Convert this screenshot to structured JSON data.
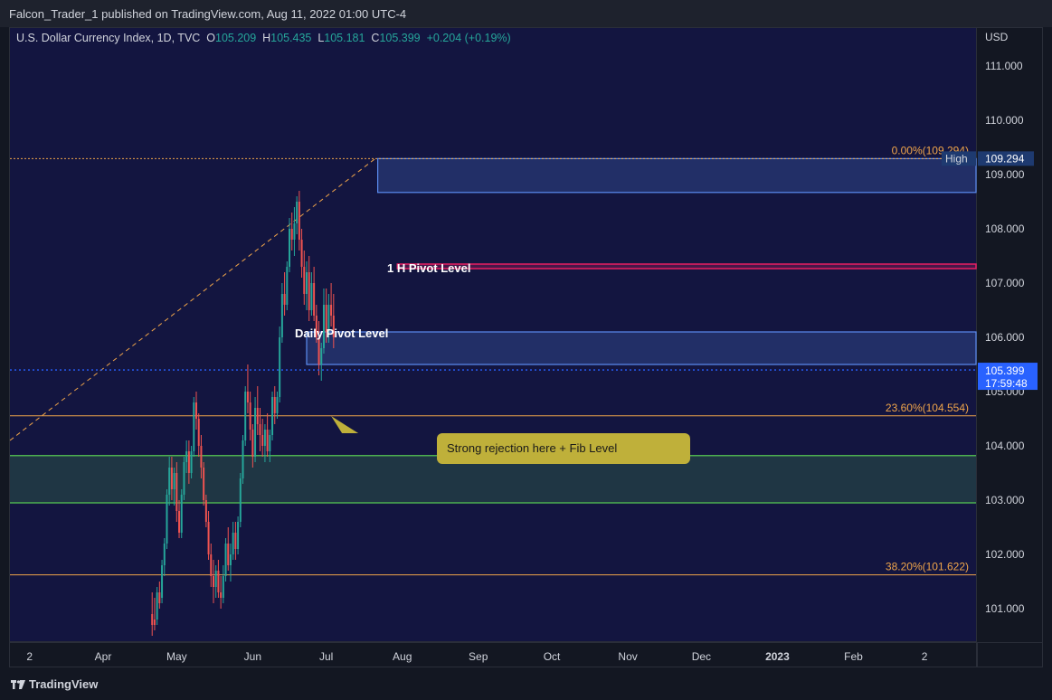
{
  "header": {
    "published": "Falcon_Trader_1 published on TradingView.com, Aug 11, 2022 01:00 UTC-4"
  },
  "legend": {
    "symbol": "U.S. Dollar Currency Index, 1D, TVC",
    "o_label": "O",
    "o_value": "105.209",
    "h_label": "H",
    "h_value": "105.435",
    "l_label": "L",
    "l_value": "105.181",
    "c_label": "C",
    "c_value": "105.399",
    "change": "+0.204 (+0.19%)"
  },
  "price_axis": {
    "unit": "USD",
    "current_price": "105.399",
    "countdown": "17:59:48",
    "high_tag": "High",
    "high_value": "109.294"
  },
  "annotations": {
    "daily_pivot": "Daily Pivot Level",
    "h1_pivot": "1 H Pivot Level",
    "callout": "Strong rejection here + Fib Level"
  },
  "footer": {
    "brand": "TradingView"
  },
  "colors": {
    "up": "#26a69a",
    "down": "#ef5350",
    "fib": "#f0a54a",
    "pivot_box": "#5b8cf0",
    "h1_pivot": "#e91e63",
    "demand_zone": "#4caf50",
    "current_line": "#2962ff"
  },
  "chart_data": {
    "type": "candlestick",
    "ylim": [
      100.4,
      111.7
    ],
    "yticks": [
      "101.000",
      "102.000",
      "103.000",
      "104.000",
      "105.000",
      "106.000",
      "107.000",
      "108.000",
      "109.000",
      "110.000",
      "111.000"
    ],
    "xticks": [
      {
        "label": "2",
        "day": 0
      },
      {
        "label": "Apr",
        "day": 30
      },
      {
        "label": "May",
        "day": 60
      },
      {
        "label": "Jun",
        "day": 91
      },
      {
        "label": "Jul",
        "day": 121
      },
      {
        "label": "Aug",
        "day": 152
      },
      {
        "label": "Sep",
        "day": 183
      },
      {
        "label": "Oct",
        "day": 213
      },
      {
        "label": "Nov",
        "day": 244
      },
      {
        "label": "Dec",
        "day": 274
      },
      {
        "label": "2023",
        "day": 305,
        "bold": true
      },
      {
        "label": "Feb",
        "day": 336
      },
      {
        "label": "2",
        "day": 365
      }
    ],
    "xlim_days": [
      -8,
      386
    ],
    "fib_levels": [
      {
        "label": "0.00%(109.294)",
        "price": 109.294
      },
      {
        "label": "23.60%(104.554)",
        "price": 104.554
      },
      {
        "label": "38.20%(101.622)",
        "price": 101.622
      }
    ],
    "zones": [
      {
        "name": "high-zone",
        "top": 109.294,
        "bottom": 108.67,
        "start_day": 142
      },
      {
        "name": "daily-pivot-zone",
        "top": 106.1,
        "bottom": 105.5,
        "start_day": 113
      },
      {
        "name": "h1-pivot-zone",
        "top": 107.35,
        "bottom": 107.27,
        "start_day": 150
      },
      {
        "name": "demand-zone",
        "top": 103.82,
        "bottom": 102.95,
        "start_day": -8
      }
    ],
    "fib_trend": {
      "from_day": -8,
      "from_price": 104.1,
      "to_day": 141,
      "to_price": 109.294
    },
    "candles": [
      [
        50,
        100.9,
        101.3,
        100.5,
        100.7
      ],
      [
        51,
        100.8,
        101.2,
        100.6,
        100.7
      ],
      [
        52,
        100.8,
        101.4,
        100.7,
        101.3
      ],
      [
        53,
        101.3,
        101.5,
        101.0,
        101.1
      ],
      [
        54,
        101.2,
        101.9,
        101.1,
        101.8
      ],
      [
        55,
        101.8,
        102.3,
        101.6,
        102.2
      ],
      [
        56,
        102.2,
        103.2,
        102.1,
        103.1
      ],
      [
        57,
        103.1,
        103.8,
        102.9,
        103.6
      ],
      [
        58,
        103.6,
        103.8,
        103.0,
        103.2
      ],
      [
        59,
        103.2,
        103.6,
        102.9,
        103.5
      ],
      [
        60,
        103.5,
        103.7,
        102.6,
        102.8
      ],
      [
        61,
        102.8,
        103.0,
        102.3,
        102.4
      ],
      [
        62,
        102.4,
        103.2,
        102.3,
        103.1
      ],
      [
        63,
        103.1,
        103.8,
        103.0,
        103.7
      ],
      [
        64,
        103.7,
        104.1,
        103.5,
        103.9
      ],
      [
        65,
        103.9,
        104.1,
        103.3,
        103.5
      ],
      [
        66,
        103.5,
        104.0,
        103.4,
        103.9
      ],
      [
        67,
        103.9,
        104.9,
        103.8,
        104.8
      ],
      [
        68,
        104.8,
        105.0,
        104.3,
        104.5
      ],
      [
        69,
        104.5,
        104.6,
        103.8,
        104.0
      ],
      [
        70,
        104.0,
        104.2,
        103.4,
        103.6
      ],
      [
        71,
        103.6,
        103.7,
        102.9,
        103.0
      ],
      [
        72,
        103.0,
        103.1,
        102.5,
        102.6
      ],
      [
        73,
        102.6,
        102.8,
        101.9,
        102.0
      ],
      [
        74,
        102.0,
        102.2,
        101.4,
        101.6
      ],
      [
        75,
        101.6,
        101.9,
        101.1,
        101.4
      ],
      [
        76,
        101.4,
        101.8,
        101.2,
        101.7
      ],
      [
        77,
        101.7,
        101.9,
        101.2,
        101.3
      ],
      [
        78,
        101.3,
        101.6,
        101.0,
        101.2
      ],
      [
        79,
        101.2,
        101.8,
        101.1,
        101.6
      ],
      [
        80,
        101.6,
        102.3,
        101.5,
        102.2
      ],
      [
        81,
        102.2,
        102.5,
        101.7,
        101.8
      ],
      [
        82,
        101.8,
        102.2,
        101.5,
        102.0
      ],
      [
        83,
        102.0,
        102.6,
        101.9,
        102.4
      ],
      [
        84,
        102.4,
        102.6,
        101.9,
        102.1
      ],
      [
        85,
        102.1,
        102.7,
        102.0,
        102.6
      ],
      [
        86,
        102.6,
        103.5,
        102.5,
        103.4
      ],
      [
        87,
        103.4,
        104.2,
        103.3,
        104.1
      ],
      [
        88,
        104.1,
        105.1,
        104.0,
        105.0
      ],
      [
        89,
        105.0,
        105.5,
        104.6,
        104.8
      ],
      [
        90,
        104.8,
        105.0,
        104.1,
        104.3
      ],
      [
        91,
        104.3,
        104.4,
        103.6,
        103.8
      ],
      [
        92,
        103.8,
        104.9,
        103.7,
        104.7
      ],
      [
        93,
        104.7,
        105.1,
        104.2,
        104.4
      ],
      [
        94,
        104.4,
        104.7,
        103.9,
        104.2
      ],
      [
        95,
        104.2,
        104.5,
        103.8,
        104.0
      ],
      [
        96,
        104.0,
        104.4,
        103.7,
        104.3
      ],
      [
        97,
        104.3,
        104.6,
        103.8,
        103.9
      ],
      [
        98,
        103.9,
        104.3,
        103.7,
        104.2
      ],
      [
        99,
        104.2,
        105.0,
        104.1,
        104.9
      ],
      [
        100,
        104.9,
        105.1,
        104.4,
        104.6
      ],
      [
        101,
        104.6,
        105.0,
        104.5,
        104.9
      ],
      [
        102,
        104.9,
        106.2,
        104.8,
        106.0
      ],
      [
        103,
        106.0,
        107.0,
        105.9,
        106.8
      ],
      [
        104,
        106.8,
        107.2,
        106.4,
        106.6
      ],
      [
        105,
        106.6,
        107.4,
        106.5,
        107.3
      ],
      [
        106,
        107.3,
        108.2,
        107.2,
        108.0
      ],
      [
        107,
        108.0,
        108.3,
        107.6,
        107.8
      ],
      [
        108,
        107.8,
        108.4,
        107.5,
        108.1
      ],
      [
        109,
        108.1,
        108.6,
        107.9,
        108.5
      ],
      [
        110,
        108.5,
        108.7,
        107.6,
        107.8
      ],
      [
        111,
        107.8,
        108.0,
        107.1,
        107.3
      ],
      [
        112,
        107.3,
        107.6,
        106.6,
        106.8
      ],
      [
        113,
        106.8,
        107.4,
        106.5,
        107.2
      ],
      [
        114,
        107.2,
        107.5,
        106.3,
        106.5
      ],
      [
        115,
        106.5,
        107.2,
        106.4,
        107.0
      ],
      [
        116,
        107.0,
        107.3,
        106.3,
        106.4
      ],
      [
        117,
        106.4,
        106.6,
        105.9,
        106.0
      ],
      [
        118,
        106.0,
        106.3,
        105.3,
        105.5
      ],
      [
        119,
        105.5,
        105.9,
        105.2,
        105.8
      ],
      [
        120,
        105.8,
        106.9,
        105.7,
        106.6
      ],
      [
        121,
        106.6,
        106.9,
        105.9,
        106.1
      ],
      [
        122,
        106.1,
        106.8,
        105.9,
        106.6
      ],
      [
        123,
        106.6,
        107.0,
        106.2,
        106.4
      ],
      [
        124,
        106.4,
        106.8,
        105.8,
        106.0
      ]
    ]
  }
}
